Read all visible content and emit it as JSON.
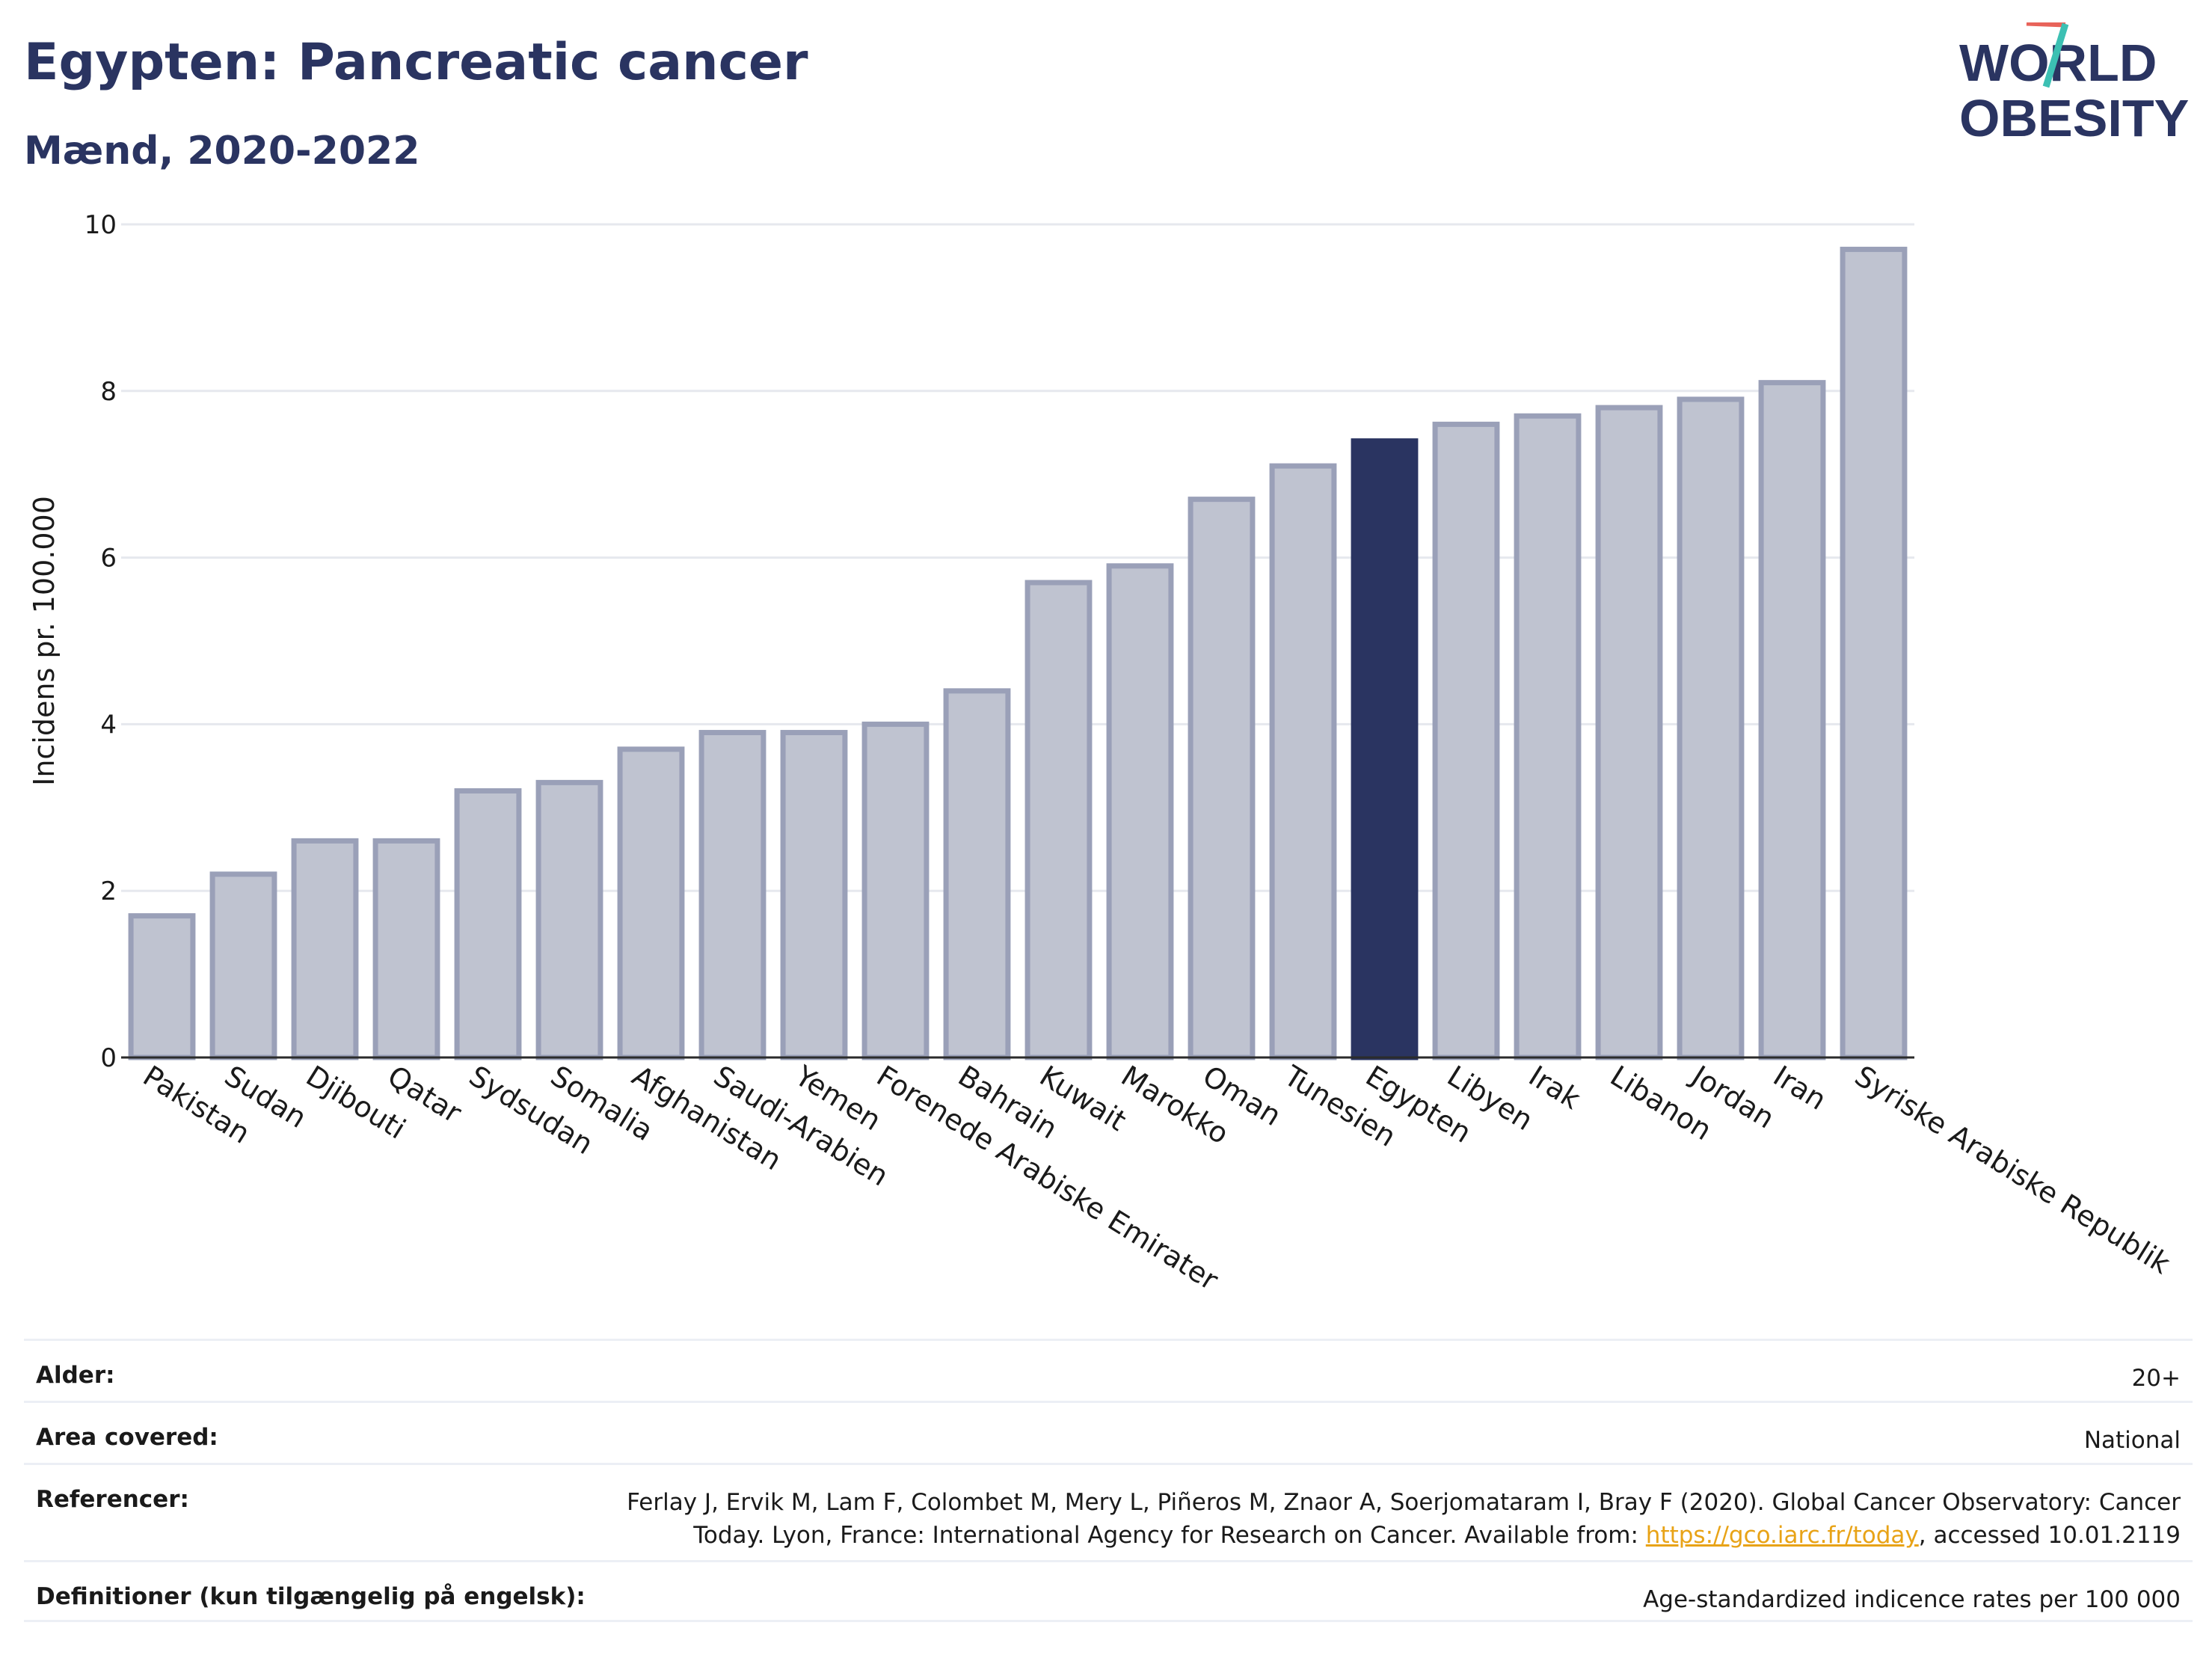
{
  "header": {
    "title": "Egypten: Pancreatic cancer",
    "subtitle": "Mænd, 2020-2022"
  },
  "logo": {
    "line1": "WORLD",
    "line2": "OBESITY",
    "accent_colors": [
      "#3cc0b3",
      "#e8635a"
    ]
  },
  "chart_data": {
    "type": "bar",
    "ylabel": "Incidens pr. 100.000",
    "xlabel": "",
    "ylim": [
      0,
      10
    ],
    "yticks": [
      0,
      2,
      4,
      6,
      8,
      10
    ],
    "grid": true,
    "highlight": "Egypten",
    "colors": {
      "bar": "#bfc3d0",
      "bar_edge": "#9aa0b8",
      "highlight": "#2a3461"
    },
    "categories": [
      "Pakistan",
      "Sudan",
      "Djibouti",
      "Qatar",
      "Sydsudan",
      "Somalia",
      "Afghanistan",
      "Saudi-Arabien",
      "Yemen",
      "Forenede Arabiske Emirater",
      "Bahrain",
      "Kuwait",
      "Marokko",
      "Oman",
      "Tunesien",
      "Egypten",
      "Libyen",
      "Irak",
      "Libanon",
      "Jordan",
      "Iran",
      "Syriske Arabiske Republik"
    ],
    "values": [
      1.7,
      2.2,
      2.6,
      2.6,
      3.2,
      3.3,
      3.7,
      3.9,
      3.9,
      4.0,
      4.4,
      5.7,
      5.9,
      6.7,
      7.1,
      7.4,
      7.6,
      7.7,
      7.8,
      7.9,
      8.1,
      9.7
    ]
  },
  "meta": {
    "age_label": "Alder:",
    "age_value": "20+",
    "area_label": "Area covered:",
    "area_value": "National",
    "ref_label": "Referencer:",
    "ref_line1": "Ferlay J, Ervik M, Lam F, Colombet M, Mery L, Piñeros M, Znaor A, Soerjomataram I, Bray F (2020). Global Cancer Observatory: Cancer",
    "ref_line2_pre": "Today. Lyon, France: International Agency for Research on Cancer. Available from: ",
    "ref_link": "https://gco.iarc.fr/today",
    "ref_line2_post": ", accessed 10.01.2119",
    "def_label": "Definitioner (kun tilgængelig på engelsk):",
    "def_value": "Age-standardized indicence rates per 100 000"
  }
}
